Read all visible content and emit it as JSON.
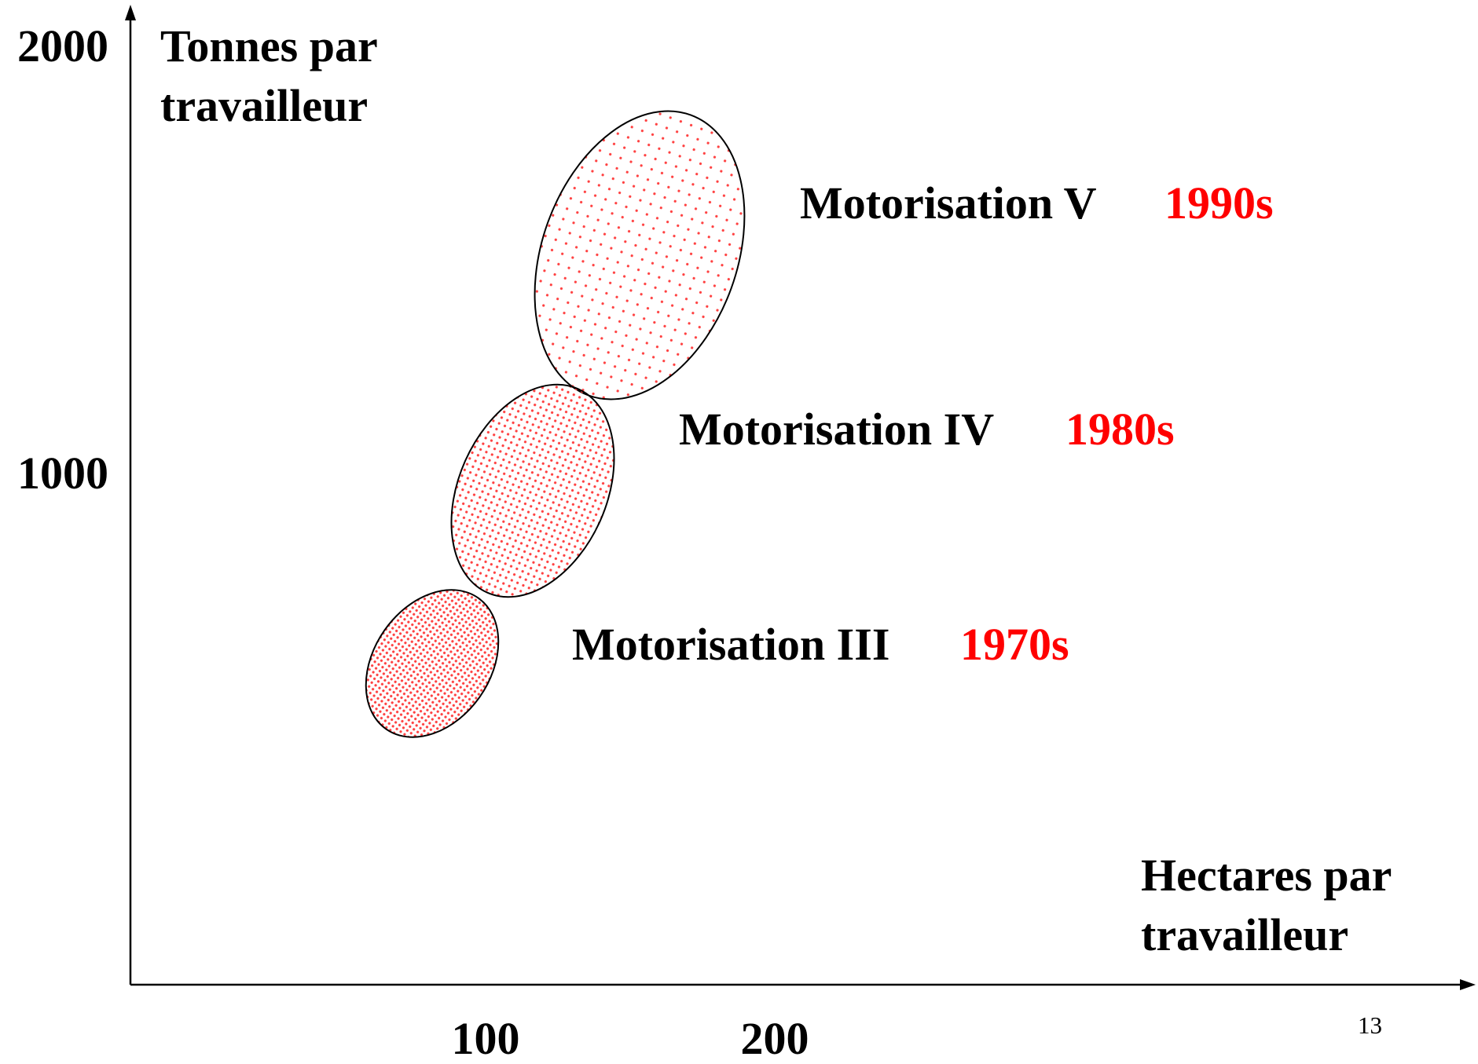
{
  "y_axis": {
    "label_line1": "Tonnes par",
    "label_line2": "travailleur",
    "ticks": [
      "1000",
      "2000"
    ]
  },
  "x_axis": {
    "label_line1": "Hectares par",
    "label_line2": "travailleur",
    "ticks": [
      "100",
      "200"
    ]
  },
  "regions": [
    {
      "label": "Motorisation III",
      "decade": "1970s"
    },
    {
      "label": "Motorisation IV",
      "decade": "1980s"
    },
    {
      "label": "Motorisation V",
      "decade": "1990s"
    }
  ],
  "page_number": "13"
}
